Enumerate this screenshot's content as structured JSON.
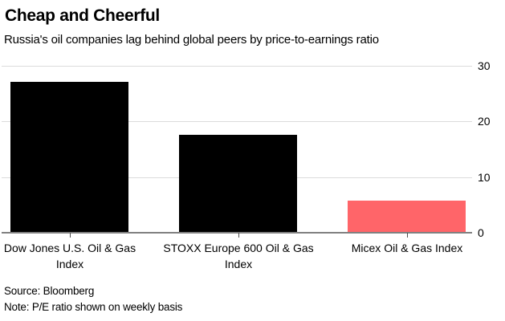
{
  "chart_data": {
    "type": "bar",
    "title": "Cheap and Cheerful",
    "subtitle": "Russia's oil companies lag behind global peers by price-to-earnings ratio",
    "categories": [
      "Dow Jones U.S. Oil & Gas Index",
      "STOXX Europe 600 Oil & Gas Index",
      "Micex Oil & Gas Index"
    ],
    "category_lines": [
      [
        "Dow Jones U.S. Oil & Gas",
        "Index"
      ],
      [
        "STOXX Europe 600 Oil & Gas",
        "Index"
      ],
      [
        "Micex Oil & Gas Index"
      ]
    ],
    "values": [
      27.1,
      17.5,
      5.8
    ],
    "bar_colors": [
      "#000000",
      "#000000",
      "#ff6569"
    ],
    "xlabel": "",
    "ylabel": "",
    "ylim": [
      0,
      30
    ],
    "yticks": [
      0,
      10,
      20,
      30
    ],
    "ytick_side": "right",
    "grid": "horizontal gridlines at 10, 20, 30",
    "legend": "none"
  },
  "footer": {
    "source": "Source: Bloomberg",
    "note": "Note: P/E ratio shown on weekly basis"
  },
  "colors": {
    "background": "#ffffff",
    "bar_black": "#000000",
    "accent_red": "#ff6569",
    "gridline": "#dcdcdc",
    "baseline": "#808080",
    "tick": "#4d4d4d",
    "text": "#000000"
  }
}
